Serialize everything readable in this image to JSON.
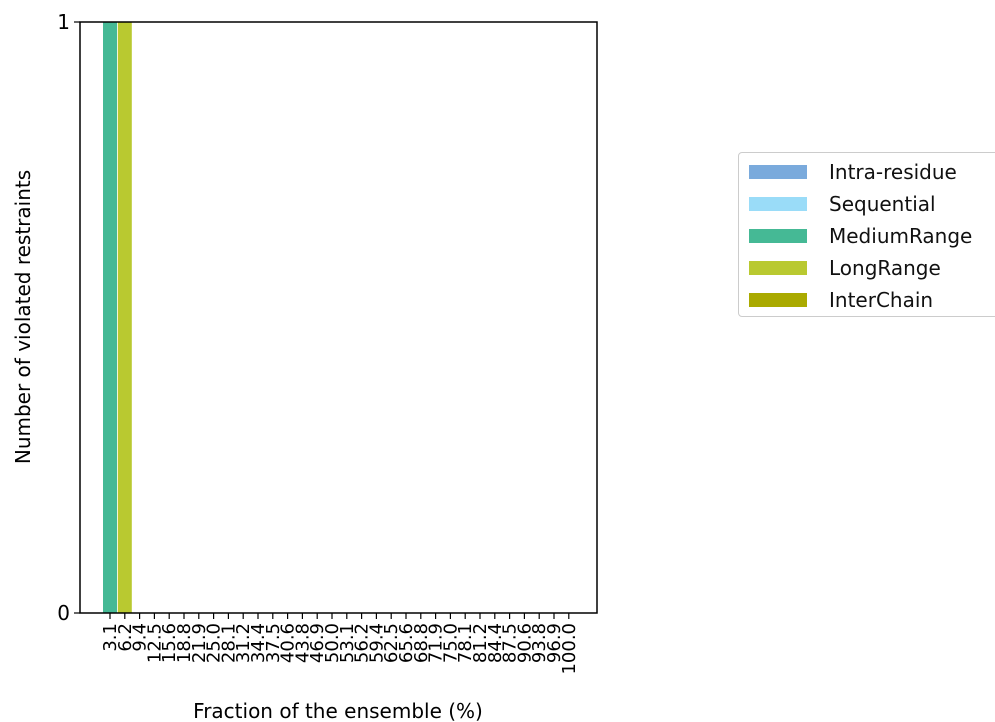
{
  "chart_data": {
    "type": "bar",
    "stacked": true,
    "title": "",
    "xlabel": "Fraction of the ensemble (%)",
    "ylabel": "Number of violated restraints",
    "ylim": [
      0,
      1
    ],
    "yticks": [
      "0",
      "1"
    ],
    "categories": [
      "3.1",
      "6.2",
      "9.4",
      "12.5",
      "15.6",
      "18.8",
      "21.9",
      "25.0",
      "28.1",
      "31.2",
      "34.4",
      "37.5",
      "40.6",
      "43.8",
      "46.9",
      "50.0",
      "53.1",
      "56.2",
      "59.4",
      "62.5",
      "65.6",
      "68.8",
      "71.9",
      "75.0",
      "78.1",
      "81.2",
      "84.4",
      "87.5",
      "90.6",
      "93.8",
      "96.9",
      "100.0"
    ],
    "series": [
      {
        "name": "Intra-residue",
        "color": "#7aaadc",
        "values": [
          0,
          0,
          0,
          0,
          0,
          0,
          0,
          0,
          0,
          0,
          0,
          0,
          0,
          0,
          0,
          0,
          0,
          0,
          0,
          0,
          0,
          0,
          0,
          0,
          0,
          0,
          0,
          0,
          0,
          0,
          0,
          0
        ]
      },
      {
        "name": "Sequential",
        "color": "#9adcf8",
        "values": [
          0,
          0,
          0,
          0,
          0,
          0,
          0,
          0,
          0,
          0,
          0,
          0,
          0,
          0,
          0,
          0,
          0,
          0,
          0,
          0,
          0,
          0,
          0,
          0,
          0,
          0,
          0,
          0,
          0,
          0,
          0,
          0
        ]
      },
      {
        "name": "MediumRange",
        "color": "#45b995",
        "values": [
          1,
          0,
          0,
          0,
          0,
          0,
          0,
          0,
          0,
          0,
          0,
          0,
          0,
          0,
          0,
          0,
          0,
          0,
          0,
          0,
          0,
          0,
          0,
          0,
          0,
          0,
          0,
          0,
          0,
          0,
          0,
          0
        ]
      },
      {
        "name": "LongRange",
        "color": "#b9c930",
        "values": [
          0,
          1,
          0,
          0,
          0,
          0,
          0,
          0,
          0,
          0,
          0,
          0,
          0,
          0,
          0,
          0,
          0,
          0,
          0,
          0,
          0,
          0,
          0,
          0,
          0,
          0,
          0,
          0,
          0,
          0,
          0,
          0
        ]
      },
      {
        "name": "InterChain",
        "color": "#aaaa00",
        "values": [
          0,
          0,
          0,
          0,
          0,
          0,
          0,
          0,
          0,
          0,
          0,
          0,
          0,
          0,
          0,
          0,
          0,
          0,
          0,
          0,
          0,
          0,
          0,
          0,
          0,
          0,
          0,
          0,
          0,
          0,
          0,
          0
        ]
      }
    ],
    "grid": false,
    "legend_position": "right"
  }
}
